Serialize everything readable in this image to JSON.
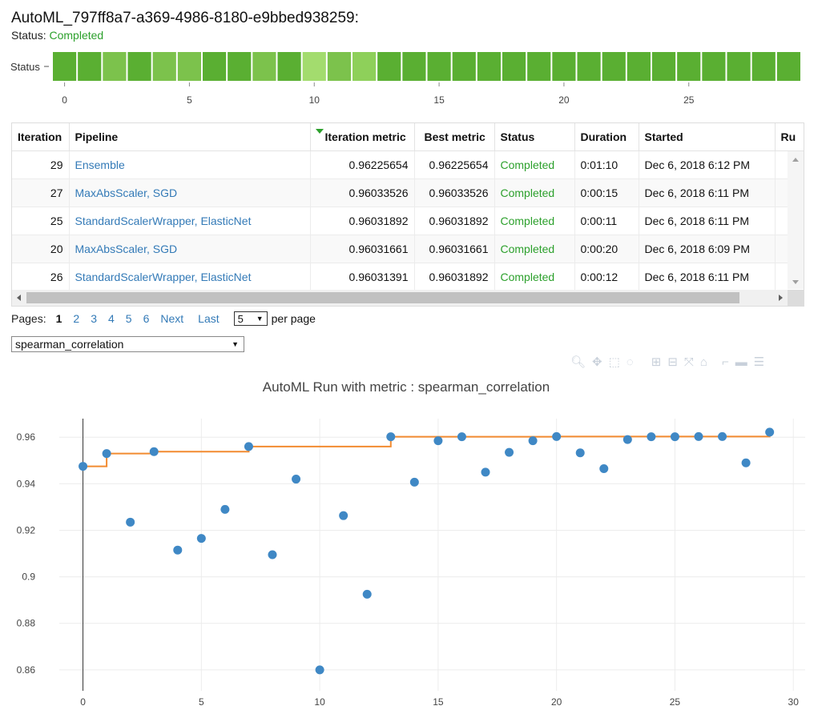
{
  "header": {
    "title": "AutoML_797ff8a7-a369-4986-8180-e9bbed938259:",
    "status_label": "Status:",
    "status_value": "Completed",
    "status_color": "#2ca02c"
  },
  "status_strip": {
    "label": "Status",
    "ticks": [
      "0",
      "5",
      "10",
      "15",
      "20",
      "25"
    ],
    "cell_colors": [
      "#5aaf32",
      "#5aaf32",
      "#7cc24c",
      "#5aaf32",
      "#7cc24c",
      "#7cc24c",
      "#5aaf32",
      "#5aaf32",
      "#7cc24c",
      "#5aaf32",
      "#a3dc6e",
      "#7cc24c",
      "#8ed05a",
      "#5aaf32",
      "#5aaf32",
      "#5aaf32",
      "#5aaf32",
      "#5aaf32",
      "#5aaf32",
      "#5aaf32",
      "#5aaf32",
      "#5aaf32",
      "#5aaf32",
      "#5aaf32",
      "#5aaf32",
      "#5aaf32",
      "#5aaf32",
      "#5aaf32",
      "#5aaf32",
      "#5aaf32"
    ]
  },
  "table": {
    "columns": [
      "Iteration",
      "Pipeline",
      "Iteration metric",
      "Best metric",
      "Status",
      "Duration",
      "Started",
      "Ru"
    ],
    "rows": [
      {
        "iteration": "29",
        "pipeline": "Ensemble",
        "iter_metric": "0.96225654",
        "best_metric": "0.96225654",
        "status": "Completed",
        "duration": "0:01:10",
        "started": "Dec 6, 2018 6:12 PM"
      },
      {
        "iteration": "27",
        "pipeline": "MaxAbsScaler, SGD",
        "iter_metric": "0.96033526",
        "best_metric": "0.96033526",
        "status": "Completed",
        "duration": "0:00:15",
        "started": "Dec 6, 2018 6:11 PM"
      },
      {
        "iteration": "25",
        "pipeline": "StandardScalerWrapper, ElasticNet",
        "iter_metric": "0.96031892",
        "best_metric": "0.96031892",
        "status": "Completed",
        "duration": "0:00:11",
        "started": "Dec 6, 2018 6:11 PM"
      },
      {
        "iteration": "20",
        "pipeline": "MaxAbsScaler, SGD",
        "iter_metric": "0.96031661",
        "best_metric": "0.96031661",
        "status": "Completed",
        "duration": "0:00:20",
        "started": "Dec 6, 2018 6:09 PM"
      },
      {
        "iteration": "26",
        "pipeline": "StandardScalerWrapper, ElasticNet",
        "iter_metric": "0.96031391",
        "best_metric": "0.96031892",
        "status": "Completed",
        "duration": "0:00:12",
        "started": "Dec 6, 2018 6:11 PM"
      }
    ]
  },
  "pager": {
    "label": "Pages:",
    "pages": [
      "1",
      "2",
      "3",
      "4",
      "5",
      "6"
    ],
    "current": "1",
    "next": "Next",
    "last": "Last",
    "per_page_value": "5",
    "per_page_label": "per page"
  },
  "metric_select": {
    "value": "spearman_correlation"
  },
  "modebar": {
    "icons": [
      "zoom-icon",
      "pan-icon",
      "box-select-icon",
      "lasso-icon",
      "zoom-in-icon",
      "zoom-out-icon",
      "autoscale-icon",
      "reset-axes-icon",
      "spike-lines-icon",
      "hover-closest-icon",
      "hover-compare-icon"
    ]
  },
  "chart_data": {
    "type": "scatter",
    "title": "AutoML Run with metric : spearman_correlation",
    "xlabel": "",
    "ylabel": "",
    "xlim": [
      -1,
      30.5
    ],
    "ylim": [
      0.851,
      0.968
    ],
    "x_ticks": [
      0,
      5,
      10,
      15,
      20,
      25,
      30
    ],
    "y_ticks": [
      0.86,
      0.88,
      0.9,
      0.92,
      0.94,
      0.96
    ],
    "y_tick_labels": [
      "0.86",
      "0.88",
      "0.9",
      "0.92",
      "0.94",
      "0.96"
    ],
    "grid": true,
    "series": [
      {
        "type": "scatter",
        "color": "#3f88c5",
        "x": [
          0,
          1,
          2,
          3,
          4,
          5,
          6,
          7,
          8,
          9,
          10,
          11,
          12,
          13,
          14,
          15,
          16,
          17,
          18,
          19,
          20,
          21,
          22,
          23,
          24,
          25,
          26,
          27,
          28,
          29
        ],
        "y": [
          0.9475,
          0.953,
          0.9235,
          0.9538,
          0.9115,
          0.9165,
          0.929,
          0.956,
          0.9095,
          0.942,
          0.86,
          0.9263,
          0.8925,
          0.9602,
          0.9407,
          0.9585,
          0.9602,
          0.945,
          0.9535,
          0.9585,
          0.9603,
          0.9533,
          0.9465,
          0.959,
          0.9602,
          0.9602,
          0.9603,
          0.9603,
          0.949,
          0.9622
        ]
      },
      {
        "type": "step",
        "color": "#f28b30",
        "x": [
          0,
          1,
          2,
          3,
          4,
          5,
          6,
          7,
          8,
          9,
          10,
          11,
          12,
          13,
          14,
          15,
          16,
          17,
          18,
          19,
          20,
          21,
          22,
          23,
          24,
          25,
          26,
          27,
          28,
          29
        ],
        "y": [
          0.9475,
          0.953,
          0.953,
          0.9538,
          0.9538,
          0.9538,
          0.9538,
          0.956,
          0.956,
          0.956,
          0.956,
          0.956,
          0.956,
          0.9602,
          0.9602,
          0.9602,
          0.9602,
          0.9602,
          0.9602,
          0.9602,
          0.9603,
          0.9603,
          0.9603,
          0.9603,
          0.9603,
          0.9603,
          0.9603,
          0.9603,
          0.9603,
          0.9622
        ]
      }
    ]
  }
}
